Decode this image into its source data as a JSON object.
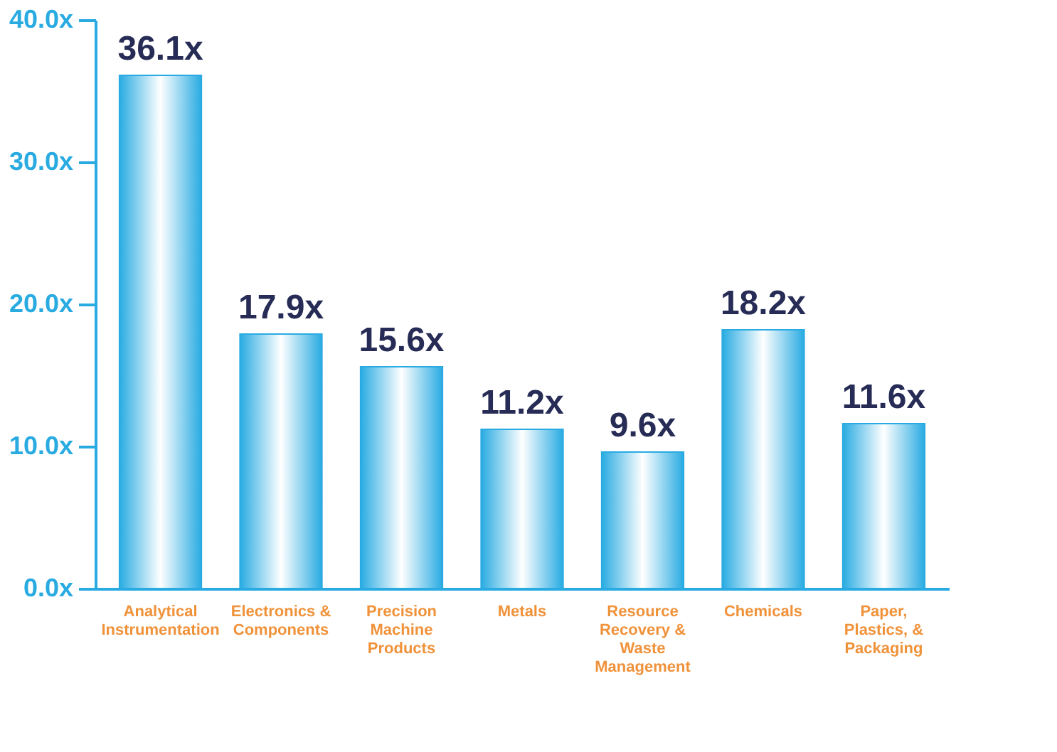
{
  "chart_data": {
    "type": "bar",
    "categories": [
      "Analytical Instrumentation",
      "Electronics & Components",
      "Precision Machine Products",
      "Metals",
      "Resource Recovery & Waste Management",
      "Chemicals",
      "Paper, Plastics, & Packaging"
    ],
    "values": [
      36.1,
      17.9,
      15.6,
      11.2,
      9.6,
      18.2,
      11.6
    ],
    "value_labels": [
      "36.1x",
      "17.9x",
      "15.6x",
      "11.2x",
      "9.6x",
      "18.2x",
      "11.6x"
    ],
    "color": "#29abe2",
    "ylim": [
      0,
      40
    ],
    "yticks": [
      {
        "value": 0,
        "label": "0.0x"
      },
      {
        "value": 10,
        "label": "10.0x"
      },
      {
        "value": 20,
        "label": "20.0x"
      },
      {
        "value": 30,
        "label": "30.0x"
      },
      {
        "value": 40,
        "label": "40.0x"
      }
    ],
    "grid": false
  }
}
